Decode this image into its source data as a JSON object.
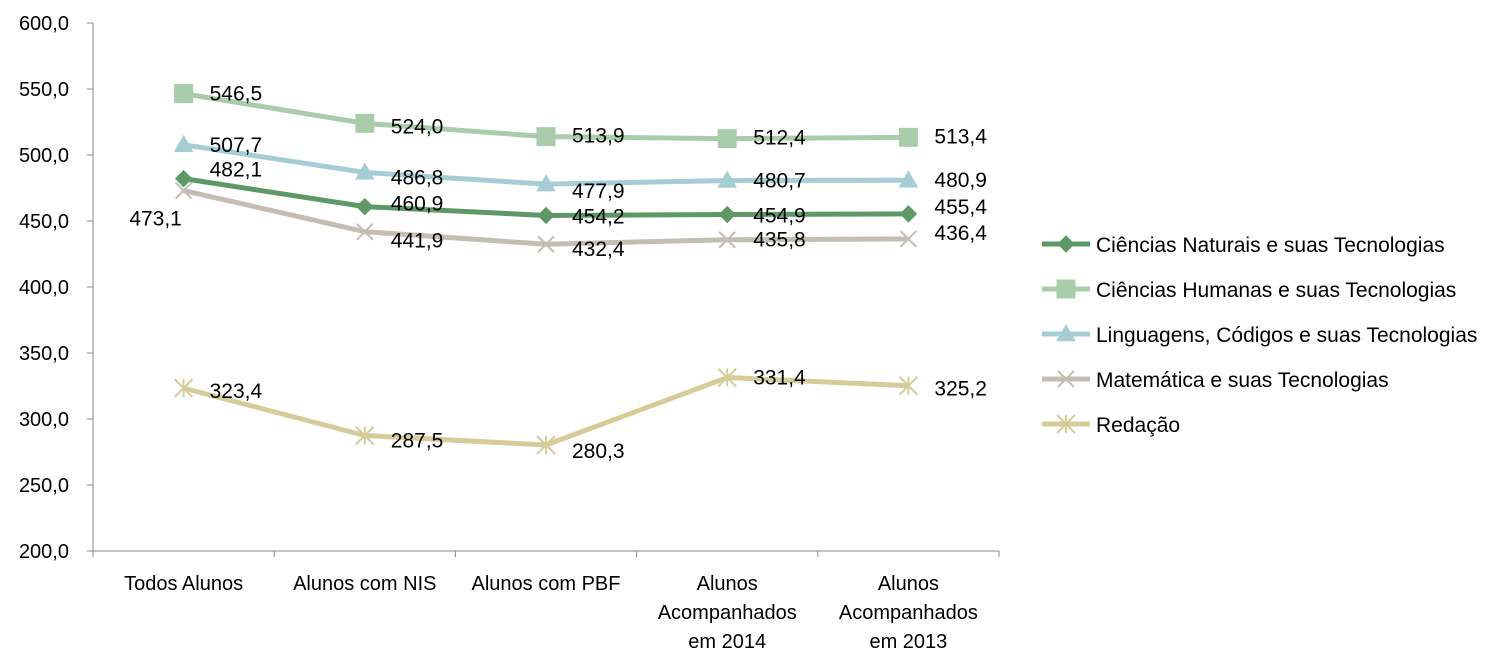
{
  "chart_data": {
    "type": "line",
    "ylim": [
      200,
      600
    ],
    "y_ticks": [
      "200,0",
      "250,0",
      "300,0",
      "350,0",
      "400,0",
      "450,0",
      "500,0",
      "550,0",
      "600,0"
    ],
    "categories": [
      [
        "Todos Alunos"
      ],
      [
        "Alunos com NIS"
      ],
      [
        "Alunos com PBF"
      ],
      [
        "Alunos",
        "Acompanhados",
        "em 2014"
      ],
      [
        "Alunos",
        "Acompanhados",
        "em  2013"
      ]
    ],
    "grid": false,
    "legend_position": "right",
    "series": [
      {
        "name": "Ciências Naturais e suas Tecnologias",
        "values": [
          482.1,
          460.9,
          454.2,
          454.9,
          455.4
        ],
        "labels": [
          "482,1",
          "460,9",
          "454,2",
          "454,9",
          "455,4"
        ],
        "color": "#5e9866",
        "marker": "diamond"
      },
      {
        "name": "Ciências Humanas e suas Tecnologias",
        "values": [
          546.5,
          524.0,
          513.9,
          512.4,
          513.4
        ],
        "labels": [
          "546,5",
          "524,0",
          "513,9",
          "512,4",
          "513,4"
        ],
        "color": "#a9ccaa",
        "marker": "square"
      },
      {
        "name": "Linguagens, Códigos e suas Tecnologias",
        "values": [
          507.7,
          486.8,
          477.9,
          480.7,
          480.9
        ],
        "labels": [
          "507,7",
          "486,8",
          "477,9",
          "480,7",
          "480,9"
        ],
        "color": "#a6cdd6",
        "marker": "triangle"
      },
      {
        "name": "Matemática e suas Tecnologias",
        "values": [
          473.1,
          441.9,
          432.4,
          435.8,
          436.4
        ],
        "labels": [
          "473,1",
          "441,9",
          "432,4",
          "435,8",
          "436,4"
        ],
        "color": "#c4beb2",
        "marker": "x"
      },
      {
        "name": "Redação",
        "values": [
          323.4,
          287.5,
          280.3,
          331.4,
          325.2
        ],
        "labels": [
          "323,4",
          "287,5",
          "280,3",
          "331,4",
          "325,2"
        ],
        "color": "#d6cc9a",
        "marker": "star"
      }
    ]
  }
}
